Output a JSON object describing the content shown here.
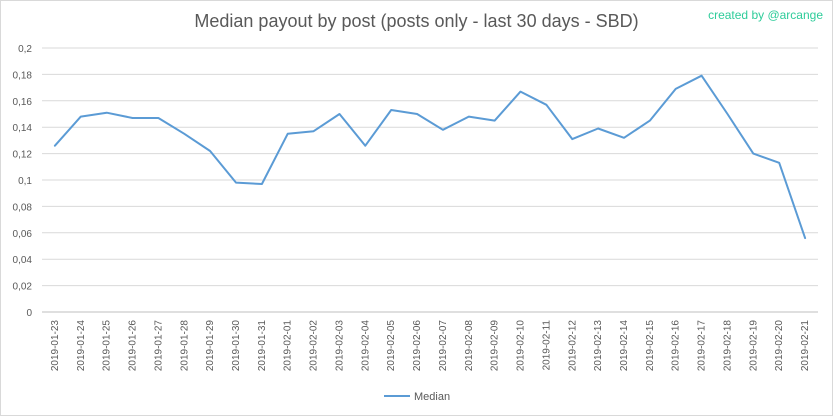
{
  "title": "Median payout by post (posts only - last 30 days - SBD)",
  "watermark": "created by @arcange",
  "chart_data": {
    "type": "line",
    "title": "Median payout by post (posts only - last 30 days - SBD)",
    "xlabel": "",
    "ylabel": "",
    "ylim": [
      0,
      0.2
    ],
    "yticks": [
      "0",
      "0,02",
      "0,04",
      "0,06",
      "0,08",
      "0,1",
      "0,12",
      "0,14",
      "0,16",
      "0,18",
      "0,2"
    ],
    "grid": true,
    "legend_position": "bottom",
    "categories": [
      "2019-01-23",
      "2019-01-24",
      "2019-01-25",
      "2019-01-26",
      "2019-01-27",
      "2019-01-28",
      "2019-01-29",
      "2019-01-30",
      "2019-01-31",
      "2019-02-01",
      "2019-02-02",
      "2019-02-03",
      "2019-02-04",
      "2019-02-05",
      "2019-02-06",
      "2019-02-07",
      "2019-02-08",
      "2019-02-09",
      "2019-02-10",
      "2019-02-11",
      "2019-02-12",
      "2019-02-13",
      "2019-02-14",
      "2019-02-15",
      "2019-02-16",
      "2019-02-17",
      "2019-02-18",
      "2019-02-19",
      "2019-02-20",
      "2019-02-21"
    ],
    "series": [
      {
        "name": "Median",
        "color": "#5b9bd5",
        "values": [
          0.126,
          0.148,
          0.151,
          0.147,
          0.147,
          0.135,
          0.122,
          0.098,
          0.097,
          0.135,
          0.137,
          0.15,
          0.126,
          0.153,
          0.15,
          0.138,
          0.148,
          0.145,
          0.167,
          0.157,
          0.131,
          0.139,
          0.132,
          0.145,
          0.169,
          0.179,
          0.15,
          0.12,
          0.113,
          0.056
        ]
      }
    ]
  }
}
